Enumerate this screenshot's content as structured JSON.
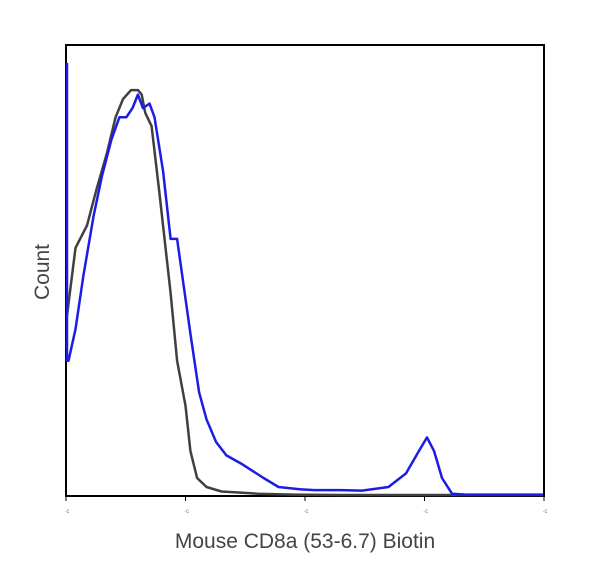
{
  "chart_data": {
    "type": "line",
    "title": "",
    "xlabel": "Mouse CD8a (53-6.7) Biotin",
    "ylabel": "Count",
    "x_scale": "log",
    "xlim": [
      1,
      10000
    ],
    "ylim": [
      0,
      100
    ],
    "x_tick_values": [
      1,
      10,
      100,
      1000,
      10000
    ],
    "grid": false,
    "legend": "none",
    "series": [
      {
        "color": "#404040",
        "points": [
          [
            1.0,
            40
          ],
          [
            1.2,
            55
          ],
          [
            1.5,
            60
          ],
          [
            1.8,
            68
          ],
          [
            2.2,
            76
          ],
          [
            2.6,
            84
          ],
          [
            3.0,
            88
          ],
          [
            3.5,
            90
          ],
          [
            4.0,
            90
          ],
          [
            4.3,
            89
          ],
          [
            4.6,
            85
          ],
          [
            5.2,
            82
          ],
          [
            6.0,
            68
          ],
          [
            7.5,
            45
          ],
          [
            8.5,
            30
          ],
          [
            10,
            20
          ],
          [
            11,
            10
          ],
          [
            12.5,
            4
          ],
          [
            15,
            2
          ],
          [
            20,
            1
          ],
          [
            40,
            0.5
          ],
          [
            80,
            0.3
          ],
          [
            200,
            0.2
          ],
          [
            1000,
            0.2
          ],
          [
            10000,
            0.2
          ]
        ]
      },
      {
        "color": "#1c1ce6",
        "points": [
          [
            0.92,
            96
          ],
          [
            0.98,
            85
          ],
          [
            1.0,
            30
          ],
          [
            1.05,
            30
          ],
          [
            1.2,
            37
          ],
          [
            1.4,
            49
          ],
          [
            1.7,
            62
          ],
          [
            2.0,
            71
          ],
          [
            2.4,
            79
          ],
          [
            2.8,
            84
          ],
          [
            3.2,
            84
          ],
          [
            3.6,
            86
          ],
          [
            4.0,
            89
          ],
          [
            4.4,
            86
          ],
          [
            5.0,
            87
          ],
          [
            5.5,
            84
          ],
          [
            6.5,
            72
          ],
          [
            7.5,
            57
          ],
          [
            8.5,
            57
          ],
          [
            9.5,
            48
          ],
          [
            11,
            36
          ],
          [
            13,
            23
          ],
          [
            15,
            17
          ],
          [
            18,
            12
          ],
          [
            22,
            9
          ],
          [
            30,
            7
          ],
          [
            45,
            4
          ],
          [
            60,
            2
          ],
          [
            90,
            1.5
          ],
          [
            120,
            1.3
          ],
          [
            200,
            1.3
          ],
          [
            300,
            1.2
          ],
          [
            500,
            2
          ],
          [
            700,
            5
          ],
          [
            900,
            10
          ],
          [
            1050,
            13
          ],
          [
            1200,
            10
          ],
          [
            1400,
            4
          ],
          [
            1700,
            0.5
          ],
          [
            2200,
            0.3
          ],
          [
            10000,
            0.3
          ]
        ]
      }
    ]
  }
}
